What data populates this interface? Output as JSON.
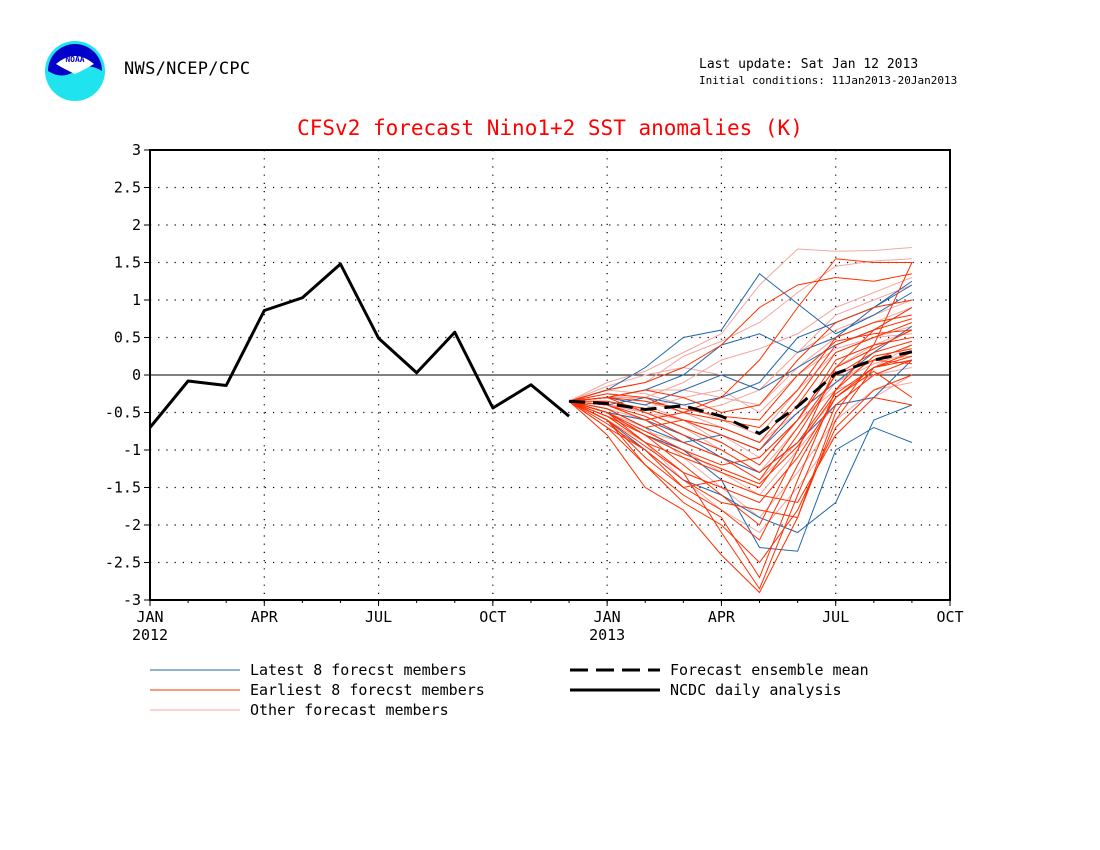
{
  "header": {
    "org": "NWS/NCEP/CPC",
    "last_update": "Last update: Sat Jan 12 2013",
    "initial_conditions": "Initial conditions: 11Jan2013-20Jan2013",
    "logo_text": "NOAA"
  },
  "colors": {
    "title": "#ff0000",
    "latest": "#2166ac",
    "earliest": "#ff3000",
    "other": "#f4a6a0",
    "analysis": "#000000",
    "grid": "#000000"
  },
  "chart_data": {
    "type": "line",
    "title": "CFSv2 forecast Nino1+2 SST anomalies (K)",
    "xlabel": "",
    "ylabel": "",
    "ylim": [
      -3,
      3
    ],
    "yticks": [
      3,
      2.5,
      2,
      1.5,
      1,
      0.5,
      0,
      -0.5,
      -1,
      -1.5,
      -2,
      -2.5,
      -3
    ],
    "ytick_labels": [
      "3",
      "2.5",
      "2",
      "1.5",
      "1",
      "0.5",
      "0",
      "-0.5",
      "-1",
      "-1.5",
      "-2",
      "-2.5",
      "-3"
    ],
    "xlim_months": [
      "2012-01",
      "2013-10"
    ],
    "xticks": [
      {
        "month": "2012-01",
        "label": "JAN",
        "sublabel": "2012"
      },
      {
        "month": "2012-04",
        "label": "APR",
        "sublabel": ""
      },
      {
        "month": "2012-07",
        "label": "JUL",
        "sublabel": ""
      },
      {
        "month": "2012-10",
        "label": "OCT",
        "sublabel": ""
      },
      {
        "month": "2013-01",
        "label": "JAN",
        "sublabel": "2013"
      },
      {
        "month": "2013-04",
        "label": "APR",
        "sublabel": ""
      },
      {
        "month": "2013-07",
        "label": "JUL",
        "sublabel": ""
      },
      {
        "month": "2013-10",
        "label": "OCT",
        "sublabel": ""
      }
    ],
    "grid": "dotted",
    "zero_line": true,
    "legend": {
      "placement": "bottom",
      "entries": [
        {
          "label": "Latest 8 forecst members",
          "style": "latest"
        },
        {
          "label": "Earliest 8 forecst members",
          "style": "earliest"
        },
        {
          "label": "Other forecast members",
          "style": "other"
        },
        {
          "label": "Forecast ensemble mean",
          "style": "mean"
        },
        {
          "label": "NCDC daily analysis",
          "style": "analysis"
        }
      ]
    },
    "forecast_months": [
      "2012-12",
      "2013-01",
      "2013-02",
      "2013-03",
      "2013-04",
      "2013-05",
      "2013-06",
      "2013-07",
      "2013-08",
      "2013-09"
    ],
    "series": [
      {
        "name": "NCDC daily analysis",
        "style": "analysis",
        "x": [
          "2012-01",
          "2012-02",
          "2012-03",
          "2012-04",
          "2012-05",
          "2012-06",
          "2012-07",
          "2012-08",
          "2012-09",
          "2012-10",
          "2012-11",
          "2012-12"
        ],
        "values": [
          -0.7,
          -0.08,
          -0.14,
          0.86,
          1.03,
          1.48,
          0.49,
          0.03,
          0.57,
          -0.44,
          -0.13,
          -0.55
        ]
      },
      {
        "name": "Forecast ensemble mean",
        "style": "mean",
        "x": [
          "2012-12",
          "2013-01",
          "2013-02",
          "2013-03",
          "2013-04",
          "2013-05",
          "2013-06",
          "2013-07",
          "2013-08",
          "2013-09"
        ],
        "values": [
          -0.35,
          -0.38,
          -0.46,
          -0.41,
          -0.55,
          -0.78,
          -0.42,
          0.02,
          0.2,
          0.31
        ]
      }
    ],
    "members": [
      {
        "style": "other",
        "values": [
          -0.35,
          -0.1,
          0.05,
          0.3,
          0.55,
          1.2,
          1.68,
          1.65,
          1.66,
          1.7
        ]
      },
      {
        "style": "other",
        "values": [
          -0.35,
          -0.2,
          -0.1,
          0.25,
          0.45,
          0.7,
          1.1,
          1.45,
          1.52,
          1.55
        ]
      },
      {
        "style": "other",
        "values": [
          -0.35,
          -0.3,
          -0.3,
          -0.1,
          0.2,
          0.35,
          0.55,
          0.9,
          1.1,
          1.3
        ]
      },
      {
        "style": "other",
        "values": [
          -0.35,
          -0.4,
          -0.5,
          -0.6,
          -0.9,
          -1.2,
          -0.6,
          0.1,
          0.4,
          0.6
        ]
      },
      {
        "style": "other",
        "values": [
          -0.35,
          -0.5,
          -0.8,
          -1.0,
          -1.3,
          -1.6,
          -1.0,
          -0.4,
          0.0,
          0.2
        ]
      },
      {
        "style": "other",
        "values": [
          -0.35,
          -0.3,
          -0.2,
          -0.2,
          -0.3,
          -0.4,
          0.1,
          0.5,
          0.7,
          0.9
        ]
      },
      {
        "style": "other",
        "values": [
          -0.35,
          -0.6,
          -0.9,
          -1.4,
          -1.8,
          -2.1,
          -1.5,
          -0.8,
          -0.3,
          0.0
        ]
      },
      {
        "style": "other",
        "values": [
          -0.35,
          -0.25,
          -0.35,
          -0.5,
          -0.7,
          -0.9,
          -0.5,
          -0.1,
          0.15,
          0.3
        ]
      },
      {
        "style": "other",
        "values": [
          -0.35,
          -0.45,
          -0.6,
          -0.5,
          -0.4,
          -0.2,
          0.3,
          0.6,
          0.8,
          1.0
        ]
      },
      {
        "style": "other",
        "values": [
          -0.35,
          -0.55,
          -0.75,
          -0.9,
          -1.1,
          -1.4,
          -0.9,
          -0.3,
          0.1,
          0.4
        ]
      },
      {
        "style": "other",
        "values": [
          -0.35,
          -0.2,
          -0.25,
          -0.4,
          -0.6,
          -0.8,
          -0.2,
          0.3,
          0.5,
          0.55
        ]
      },
      {
        "style": "other",
        "values": [
          -0.35,
          -0.35,
          -0.5,
          -0.7,
          -1.0,
          -1.3,
          -0.7,
          -0.1,
          0.2,
          0.25
        ]
      },
      {
        "style": "other",
        "values": [
          -0.35,
          -0.15,
          0.0,
          0.1,
          0.0,
          -0.2,
          0.3,
          0.8,
          1.0,
          1.2
        ]
      },
      {
        "style": "other",
        "values": [
          -0.35,
          -0.5,
          -0.7,
          -1.1,
          -1.5,
          -1.9,
          -1.3,
          -0.6,
          -0.2,
          -0.1
        ]
      },
      {
        "style": "other",
        "values": [
          -0.35,
          -0.4,
          -0.45,
          -0.3,
          -0.2,
          -0.5,
          0.0,
          0.35,
          0.5,
          0.65
        ]
      },
      {
        "style": "other",
        "values": [
          -0.35,
          -0.3,
          -0.4,
          -0.6,
          -0.8,
          -1.1,
          -0.6,
          -0.2,
          0.0,
          0.1
        ]
      },
      {
        "style": "latest",
        "values": [
          -0.35,
          -0.2,
          0.1,
          0.5,
          0.6,
          1.35,
          0.95,
          0.55,
          0.8,
          1.1
        ]
      },
      {
        "style": "latest",
        "values": [
          -0.35,
          -0.3,
          -0.2,
          0.0,
          0.4,
          0.55,
          0.3,
          0.5,
          0.9,
          1.2
        ]
      },
      {
        "style": "latest",
        "values": [
          -0.35,
          -0.5,
          -0.8,
          -1.0,
          -1.4,
          -2.3,
          -2.35,
          -1.0,
          -0.7,
          -0.9
        ]
      },
      {
        "style": "latest",
        "values": [
          -0.35,
          -0.6,
          -1.0,
          -1.4,
          -1.6,
          -1.9,
          -2.1,
          -1.7,
          -0.6,
          -0.4
        ]
      },
      {
        "style": "latest",
        "values": [
          -0.35,
          -0.4,
          -0.3,
          -0.4,
          -0.3,
          -0.1,
          0.5,
          0.7,
          0.9,
          1.25
        ]
      },
      {
        "style": "latest",
        "values": [
          -0.35,
          -0.5,
          -0.6,
          -0.8,
          -1.1,
          -1.3,
          -0.9,
          -0.4,
          -0.3,
          0.2
        ]
      },
      {
        "style": "latest",
        "values": [
          -0.35,
          -0.3,
          -0.4,
          -0.2,
          0.0,
          -0.2,
          0.1,
          0.4,
          0.6,
          0.9
        ]
      },
      {
        "style": "latest",
        "values": [
          -0.35,
          -0.45,
          -0.7,
          -0.9,
          -0.8,
          -1.0,
          -0.5,
          -0.1,
          0.3,
          0.65
        ]
      },
      {
        "style": "earliest",
        "values": [
          -0.35,
          -0.8,
          -1.5,
          -1.8,
          -2.4,
          -2.9,
          -1.9,
          -0.6,
          0.1,
          0.3
        ]
      },
      {
        "style": "earliest",
        "values": [
          -0.35,
          -0.6,
          -1.2,
          -1.6,
          -1.9,
          -2.7,
          -1.4,
          -0.2,
          0.4,
          1.5
        ]
      },
      {
        "style": "earliest",
        "values": [
          -0.35,
          -0.5,
          -0.8,
          -1.2,
          -1.6,
          -2.0,
          -1.0,
          0.1,
          0.6,
          0.9
        ]
      },
      {
        "style": "earliest",
        "values": [
          -0.35,
          -0.7,
          -1.0,
          -1.4,
          -1.7,
          -1.8,
          -1.9,
          -0.5,
          0.2,
          0.4
        ]
      },
      {
        "style": "earliest",
        "values": [
          -0.35,
          -0.4,
          -0.6,
          -0.5,
          -0.3,
          0.2,
          0.9,
          1.55,
          1.5,
          1.5
        ]
      },
      {
        "style": "earliest",
        "values": [
          -0.35,
          -0.2,
          -0.1,
          0.1,
          0.4,
          0.9,
          1.2,
          1.3,
          1.25,
          1.35
        ]
      },
      {
        "style": "earliest",
        "values": [
          -0.35,
          -0.5,
          -0.9,
          -1.3,
          -2.1,
          -2.85,
          -1.6,
          -0.4,
          0.0,
          0.2
        ]
      },
      {
        "style": "earliest",
        "values": [
          -0.35,
          -0.6,
          -1.1,
          -1.5,
          -1.4,
          -1.6,
          -1.7,
          -0.8,
          -0.3,
          -0.4
        ]
      },
      {
        "style": "earliest",
        "values": [
          -0.35,
          -0.3,
          -0.5,
          -0.7,
          -0.9,
          -1.2,
          -0.6,
          0.2,
          0.4,
          0.5
        ]
      },
      {
        "style": "earliest",
        "values": [
          -0.35,
          -0.45,
          -0.7,
          -0.6,
          -0.8,
          -1.0,
          -0.4,
          0.3,
          0.5,
          0.7
        ]
      },
      {
        "style": "earliest",
        "values": [
          -0.35,
          -0.55,
          -0.9,
          -1.1,
          -1.3,
          -1.5,
          -0.8,
          0.0,
          0.3,
          0.45
        ]
      },
      {
        "style": "earliest",
        "values": [
          -0.35,
          -0.25,
          -0.3,
          -0.5,
          -0.6,
          -0.7,
          -0.2,
          0.5,
          0.7,
          0.8
        ]
      },
      {
        "style": "earliest",
        "values": [
          -0.35,
          -0.65,
          -1.0,
          -1.5,
          -1.8,
          -2.2,
          -1.2,
          -0.3,
          0.1,
          0.2
        ]
      },
      {
        "style": "earliest",
        "values": [
          -0.35,
          -0.4,
          -0.55,
          -0.8,
          -1.0,
          -1.3,
          -0.9,
          -0.2,
          0.25,
          0.35
        ]
      },
      {
        "style": "earliest",
        "values": [
          -0.35,
          -0.3,
          -0.2,
          -0.3,
          -0.5,
          -0.4,
          0.2,
          0.7,
          0.9,
          1.0
        ]
      },
      {
        "style": "earliest",
        "values": [
          -0.35,
          -0.7,
          -1.2,
          -1.7,
          -2.0,
          -2.5,
          -1.8,
          -0.7,
          -0.2,
          0.0
        ]
      },
      {
        "style": "earliest",
        "values": [
          -0.35,
          -0.5,
          -0.75,
          -1.0,
          -1.2,
          -1.1,
          -0.6,
          0.1,
          0.35,
          0.6
        ]
      },
      {
        "style": "earliest",
        "values": [
          -0.35,
          -0.35,
          -0.45,
          -0.6,
          -0.7,
          -0.9,
          -0.3,
          0.4,
          0.6,
          0.75
        ]
      },
      {
        "style": "earliest",
        "values": [
          -0.35,
          -0.6,
          -0.95,
          -1.3,
          -1.5,
          -1.7,
          -1.1,
          -0.3,
          0.05,
          -0.3
        ]
      },
      {
        "style": "earliest",
        "values": [
          -0.35,
          -0.4,
          -0.6,
          -0.9,
          -1.1,
          -1.4,
          -0.7,
          0.0,
          0.2,
          0.15
        ]
      },
      {
        "style": "earliest",
        "values": [
          -0.35,
          -0.3,
          -0.35,
          -0.45,
          -0.55,
          -0.6,
          0.0,
          0.45,
          0.55,
          0.6
        ]
      },
      {
        "style": "earliest",
        "values": [
          -0.35,
          -0.55,
          -0.8,
          -1.05,
          -1.25,
          -1.45,
          -0.95,
          -0.25,
          0.1,
          0.25
        ]
      }
    ]
  }
}
